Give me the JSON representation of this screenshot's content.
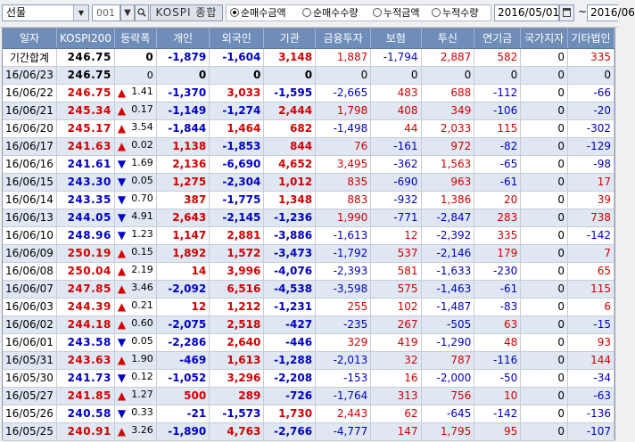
{
  "toolbar": {
    "market": "선물",
    "code": "001",
    "stock_name": "KOSPI 종합",
    "radios": [
      "순매수금액",
      "순매수수량",
      "누적금액",
      "누적수량"
    ],
    "selected_radio": 0,
    "start_date": "2016/05/01",
    "tilde": "~",
    "end_date": "2016/06"
  },
  "table": {
    "headers": [
      "일자",
      "KOSPI200",
      "등락폭",
      "개인",
      "외국인",
      "기관",
      "금융투자",
      "보험",
      "투신",
      "연기금",
      "국가지자",
      "기타법인"
    ],
    "summary": {
      "label": "기간합계",
      "cells": [
        "246.75",
        "",
        "0",
        "-1,879",
        "-1,604",
        "3,148",
        "1,887",
        "-1,794",
        "2,887",
        "582",
        "0",
        "335"
      ]
    },
    "rows": [
      {
        "date": "16/06/23",
        "idx": "246.75",
        "dir": "",
        "chg": "0",
        "c": [
          "0",
          "0",
          "0",
          "0",
          "0",
          "0",
          "0",
          "0",
          "0"
        ]
      },
      {
        "date": "16/06/22",
        "idx": "246.75",
        "dir": "up",
        "chg": "1.41",
        "c": [
          "-1,370",
          "3,033",
          "-1,595",
          "-2,665",
          "483",
          "688",
          "-112",
          "0",
          "-66"
        ]
      },
      {
        "date": "16/06/21",
        "idx": "245.34",
        "dir": "up",
        "chg": "0.17",
        "c": [
          "-1,149",
          "-1,274",
          "2,444",
          "1,798",
          "408",
          "349",
          "-106",
          "0",
          "-20"
        ]
      },
      {
        "date": "16/06/20",
        "idx": "245.17",
        "dir": "up",
        "chg": "3.54",
        "c": [
          "-1,844",
          "1,464",
          "682",
          "-1,498",
          "44",
          "2,033",
          "115",
          "0",
          "-302"
        ]
      },
      {
        "date": "16/06/17",
        "idx": "241.63",
        "dir": "up",
        "chg": "0.02",
        "c": [
          "1,138",
          "-1,853",
          "844",
          "76",
          "-161",
          "972",
          "-82",
          "0",
          "-129"
        ]
      },
      {
        "date": "16/06/16",
        "idx": "241.61",
        "dir": "down",
        "chg": "1.69",
        "c": [
          "2,136",
          "-6,690",
          "4,652",
          "3,495",
          "-362",
          "1,563",
          "-65",
          "0",
          "-98"
        ]
      },
      {
        "date": "16/06/15",
        "idx": "243.30",
        "dir": "down",
        "chg": "0.05",
        "c": [
          "1,275",
          "-2,304",
          "1,012",
          "835",
          "-690",
          "963",
          "-61",
          "0",
          "17"
        ]
      },
      {
        "date": "16/06/14",
        "idx": "243.35",
        "dir": "down",
        "chg": "0.70",
        "c": [
          "387",
          "-1,775",
          "1,348",
          "883",
          "-932",
          "1,386",
          "20",
          "0",
          "39"
        ]
      },
      {
        "date": "16/06/13",
        "idx": "244.05",
        "dir": "down",
        "chg": "4.91",
        "c": [
          "2,643",
          "-2,145",
          "-1,236",
          "1,990",
          "-771",
          "-2,847",
          "283",
          "0",
          "738"
        ]
      },
      {
        "date": "16/06/10",
        "idx": "248.96",
        "dir": "down",
        "chg": "1.23",
        "c": [
          "1,147",
          "2,881",
          "-3,886",
          "-1,613",
          "12",
          "-2,392",
          "335",
          "0",
          "-142"
        ]
      },
      {
        "date": "16/06/09",
        "idx": "250.19",
        "dir": "up",
        "chg": "0.15",
        "c": [
          "1,892",
          "1,572",
          "-3,473",
          "-1,792",
          "537",
          "-2,146",
          "179",
          "0",
          "7"
        ]
      },
      {
        "date": "16/06/08",
        "idx": "250.04",
        "dir": "up",
        "chg": "2.19",
        "c": [
          "14",
          "3,996",
          "-4,076",
          "-2,393",
          "581",
          "-1,633",
          "-230",
          "0",
          "65"
        ]
      },
      {
        "date": "16/06/07",
        "idx": "247.85",
        "dir": "up",
        "chg": "3.46",
        "c": [
          "-2,092",
          "6,516",
          "-4,538",
          "-3,598",
          "575",
          "-1,463",
          "-61",
          "0",
          "115"
        ]
      },
      {
        "date": "16/06/03",
        "idx": "244.39",
        "dir": "up",
        "chg": "0.21",
        "c": [
          "12",
          "1,212",
          "-1,231",
          "255",
          "102",
          "-1,487",
          "-83",
          "0",
          "6"
        ]
      },
      {
        "date": "16/06/02",
        "idx": "244.18",
        "dir": "up",
        "chg": "0.60",
        "c": [
          "-2,075",
          "2,518",
          "-427",
          "-235",
          "267",
          "-505",
          "63",
          "0",
          "-15"
        ]
      },
      {
        "date": "16/06/01",
        "idx": "243.58",
        "dir": "down",
        "chg": "0.05",
        "c": [
          "-2,286",
          "2,640",
          "-446",
          "329",
          "419",
          "-1,290",
          "48",
          "0",
          "93"
        ]
      },
      {
        "date": "16/05/31",
        "idx": "243.63",
        "dir": "up",
        "chg": "1.90",
        "c": [
          "-469",
          "1,613",
          "-1,288",
          "-2,013",
          "32",
          "787",
          "-116",
          "0",
          "144"
        ]
      },
      {
        "date": "16/05/30",
        "idx": "241.73",
        "dir": "down",
        "chg": "0.12",
        "c": [
          "-1,052",
          "3,296",
          "-2,208",
          "-153",
          "16",
          "-2,000",
          "-50",
          "0",
          "-34"
        ]
      },
      {
        "date": "16/05/27",
        "idx": "241.85",
        "dir": "up",
        "chg": "1.27",
        "c": [
          "500",
          "289",
          "-726",
          "-1,764",
          "313",
          "756",
          "10",
          "0",
          "-63"
        ]
      },
      {
        "date": "16/05/26",
        "idx": "240.58",
        "dir": "down",
        "chg": "0.33",
        "c": [
          "-21",
          "-1,573",
          "1,730",
          "2,443",
          "62",
          "-645",
          "-142",
          "0",
          "-136"
        ]
      },
      {
        "date": "16/05/25",
        "idx": "240.91",
        "dir": "up",
        "chg": "3.26",
        "c": [
          "-1,890",
          "4,763",
          "-2,766",
          "-4,777",
          "147",
          "1,795",
          "95",
          "0",
          "-107"
        ]
      }
    ]
  },
  "colors": {
    "header_bg": "#6f8db9",
    "stripe_bg": "#dfe7f3",
    "positive": "#d50000",
    "negative": "#0000c8",
    "neutral": "#000000"
  },
  "icons": {
    "up": "triangle-up-icon",
    "down": "triangle-down-icon",
    "calendar": "calendar-icon",
    "dropdown": "chevron-down-icon"
  }
}
